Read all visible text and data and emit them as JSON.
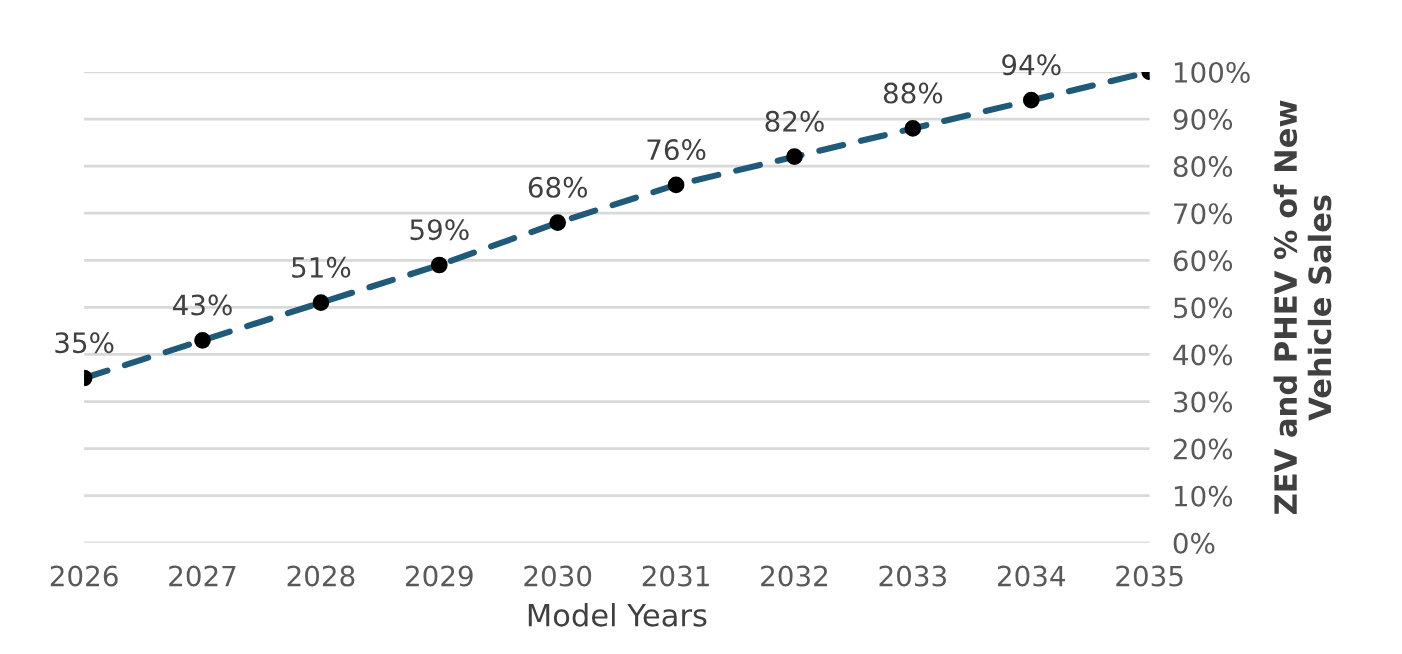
{
  "chart_data": {
    "type": "line",
    "categories": [
      "2026",
      "2027",
      "2028",
      "2029",
      "2030",
      "2031",
      "2032",
      "2033",
      "2034",
      "2035"
    ],
    "values": [
      35,
      43,
      51,
      59,
      68,
      76,
      82,
      88,
      94,
      100
    ],
    "value_labels": [
      "35%",
      "43%",
      "51%",
      "59%",
      "68%",
      "76%",
      "82%",
      "88%",
      "94%",
      null
    ],
    "color": "#1f5b78",
    "marker": "circle",
    "line_style": "dashed",
    "xlabel": "Model Years",
    "ylabel": "ZEV and PHEV % of New Vehicle Sales",
    "ylim": [
      0,
      100
    ],
    "yticks": [
      {
        "value": 0,
        "label": "0%"
      },
      {
        "value": 10,
        "label": "10%"
      },
      {
        "value": 20,
        "label": "20%"
      },
      {
        "value": 30,
        "label": "30%"
      },
      {
        "value": 40,
        "label": "40%"
      },
      {
        "value": 50,
        "label": "50%"
      },
      {
        "value": 60,
        "label": "60%"
      },
      {
        "value": 70,
        "label": "70%"
      },
      {
        "value": 80,
        "label": "80%"
      },
      {
        "value": 90,
        "label": "90%"
      },
      {
        "value": 100,
        "label": "100%"
      }
    ],
    "grid": "y",
    "legend": false
  }
}
